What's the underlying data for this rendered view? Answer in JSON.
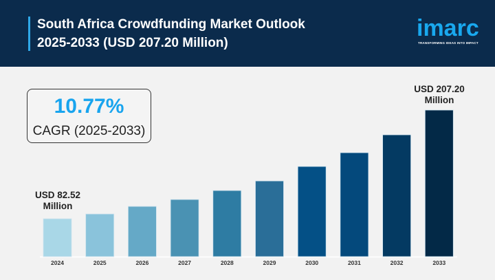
{
  "header": {
    "title_line1": "South Africa Crowdfunding Market Outlook",
    "title_line2": "2025-2033 (USD 207.20 Million)",
    "logo": "imarc",
    "tagline": "TRANSFORMING IDEAS INTO IMPACT"
  },
  "cagr": {
    "value": "10.77%",
    "label": "CAGR (2025-2033)"
  },
  "annotations": {
    "start_line1": "USD 82.52",
    "start_line2": "Million",
    "end_line1": "USD 207.20",
    "end_line2": "Million"
  },
  "colors": {
    "header": "#0b2b4c",
    "accent": "#18a4ee",
    "bars": [
      "#a9d7e7",
      "#8ac3db",
      "#65a9c7",
      "#4a92b3",
      "#2e7ca3",
      "#2a6e98",
      "#045086",
      "#04497c",
      "#043a62",
      "#032947"
    ]
  },
  "chart_data": {
    "type": "bar",
    "title": "South Africa Crowdfunding Market Outlook 2025-2033 (USD 207.20 Million)",
    "categories": [
      "2024",
      "2025",
      "2026",
      "2027",
      "2028",
      "2029",
      "2030",
      "2031",
      "2032",
      "2033"
    ],
    "values": [
      82.52,
      88.0,
      96.7,
      104.6,
      114.9,
      125.9,
      142.5,
      158.3,
      178.8,
      207.2
    ],
    "unit": "USD Million",
    "xlabel": "",
    "ylabel": "",
    "grid": false,
    "legend": "none"
  }
}
